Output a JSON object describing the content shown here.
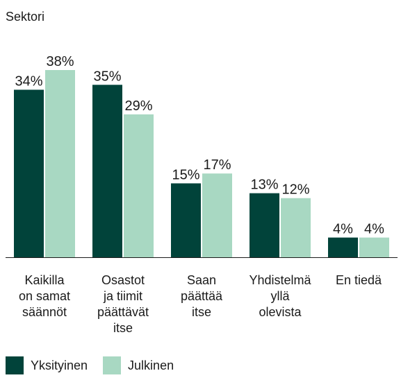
{
  "chart_data": {
    "type": "bar",
    "title": "Sektori",
    "categories": [
      [
        "Kaikilla",
        "on samat",
        "säännöt"
      ],
      [
        "Osastot",
        "ja tiimit",
        "päättävät",
        "itse"
      ],
      [
        "Saan",
        "päättää",
        "itse"
      ],
      [
        "Yhdistelmä",
        "yllä",
        "olevista"
      ],
      [
        "En tiedä"
      ]
    ],
    "series": [
      {
        "name": "Yksityinen",
        "color": "#01433a",
        "values": [
          34,
          35,
          15,
          13,
          4
        ],
        "labels": [
          "34%",
          "35%",
          "15%",
          "13%",
          "4%"
        ]
      },
      {
        "name": "Julkinen",
        "color": "#a8d8c2",
        "values": [
          38,
          29,
          17,
          12,
          4
        ],
        "labels": [
          "38%",
          "29%",
          "17%",
          "12%",
          "4%"
        ]
      }
    ],
    "ylim": [
      0,
      40
    ],
    "grid": false,
    "legend": "bottom-left"
  }
}
